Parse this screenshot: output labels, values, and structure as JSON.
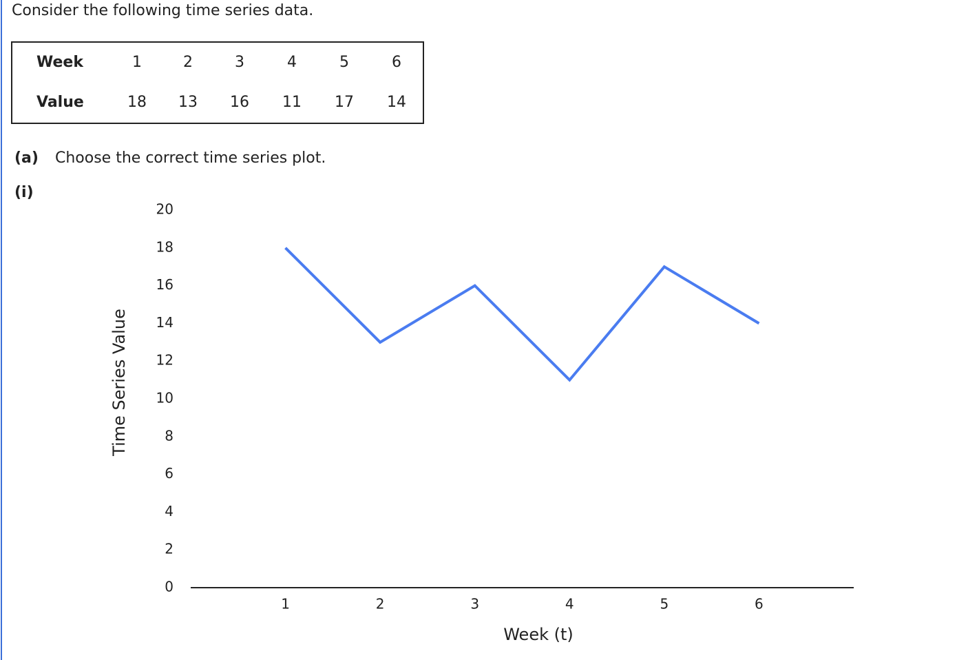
{
  "intro": "Consider the following time series data.",
  "table": {
    "rows": [
      [
        "Week",
        1,
        2,
        3,
        4,
        5,
        6
      ],
      [
        "Value",
        18,
        13,
        16,
        11,
        17,
        14
      ]
    ]
  },
  "question": {
    "label": "(a)",
    "text": "Choose the correct time series plot."
  },
  "option": "(i)",
  "chart_data": {
    "type": "line",
    "x": [
      1,
      2,
      3,
      4,
      5,
      6
    ],
    "series": [
      {
        "name": "Time Series Value",
        "color": "#4a7cf0",
        "values": [
          18,
          13,
          16,
          11,
          17,
          14
        ]
      }
    ],
    "xlabel": "Week (t)",
    "ylabel": "Time Series Value",
    "xlim": [
      0,
      7
    ],
    "xticks": [
      1,
      2,
      3,
      4,
      5,
      6
    ],
    "ylim": [
      0,
      20
    ],
    "yticks": [
      0,
      2,
      4,
      6,
      8,
      10,
      12,
      14,
      16,
      18,
      20
    ],
    "grid": false,
    "legend": false
  }
}
